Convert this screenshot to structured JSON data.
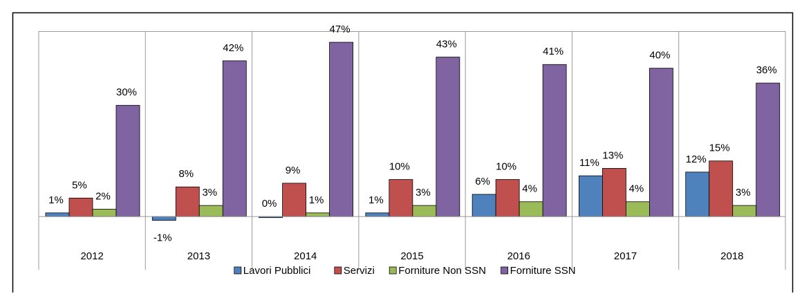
{
  "chart_data": {
    "type": "bar",
    "categories": [
      "2012",
      "2013",
      "2014",
      "2015",
      "2016",
      "2017",
      "2018"
    ],
    "series": [
      {
        "name": "Lavori Pubblici",
        "color": "#4f81bd",
        "values": [
          1,
          -1,
          0,
          1,
          6,
          11,
          12
        ],
        "value_labels": [
          "1%",
          "-1%",
          "0%",
          "1%",
          "6%",
          "11%",
          "12%"
        ]
      },
      {
        "name": "Servizi",
        "color": "#c0504d",
        "values": [
          5,
          8,
          9,
          10,
          10,
          13,
          15
        ],
        "value_labels": [
          "5%",
          "8%",
          "9%",
          "10%",
          "10%",
          "13%",
          "15%"
        ]
      },
      {
        "name": "Forniture Non SSN",
        "color": "#9bbb59",
        "values": [
          2,
          3,
          1,
          3,
          4,
          4,
          3
        ],
        "value_labels": [
          "2%",
          "3%",
          "1%",
          "3%",
          "4%",
          "4%",
          "3%"
        ]
      },
      {
        "name": "Forniture SSN",
        "color": "#8064a2",
        "values": [
          30,
          42,
          47,
          43,
          41,
          40,
          36
        ],
        "value_labels": [
          "30%",
          "42%",
          "47%",
          "43%",
          "41%",
          "40%",
          "36%"
        ]
      }
    ],
    "ylim": [
      -5,
      50
    ],
    "legend": "bottom"
  }
}
